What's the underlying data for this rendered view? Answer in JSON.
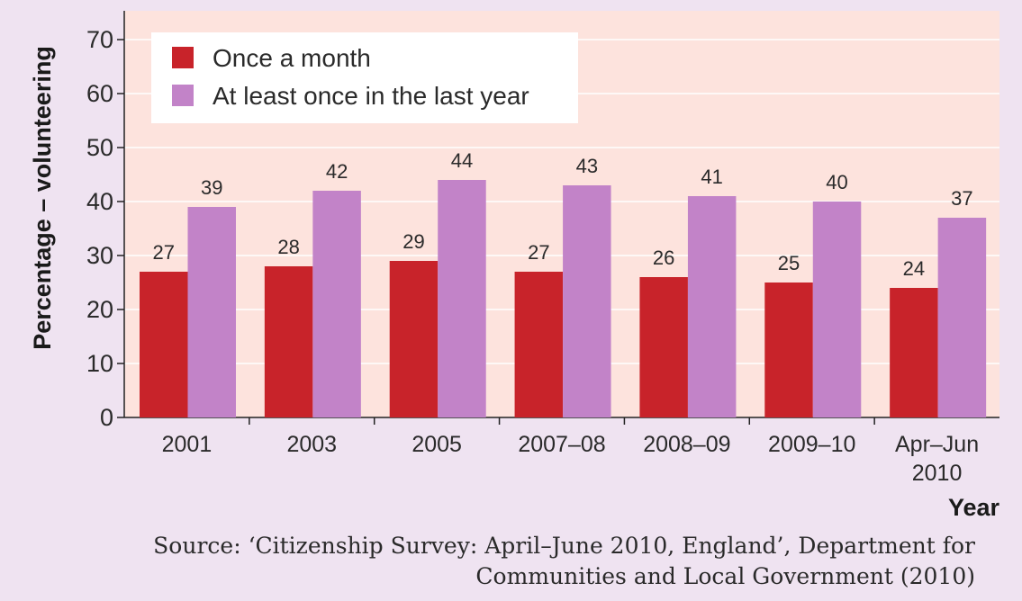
{
  "chart_data": {
    "type": "bar",
    "ylabel": "Percentage – volunteering",
    "xlabel": "Year",
    "ylim": [
      0,
      75
    ],
    "yticks": [
      0,
      10,
      20,
      30,
      40,
      50,
      60,
      70
    ],
    "categories": [
      [
        "2001"
      ],
      [
        "2003"
      ],
      [
        "2005"
      ],
      [
        "2007–08"
      ],
      [
        "2008–09"
      ],
      [
        "2009–10"
      ],
      [
        "Apr–Jun",
        "2010"
      ]
    ],
    "series": [
      {
        "name": "Once a month",
        "color": "#c8232a",
        "values": [
          27,
          28,
          29,
          27,
          26,
          25,
          24
        ]
      },
      {
        "name": "At least once in the last year",
        "color": "#c283c8",
        "values": [
          39,
          42,
          44,
          43,
          41,
          40,
          37
        ]
      }
    ],
    "legend_position": "top-left",
    "grid": true,
    "plot_background": "#fde3dd"
  },
  "source": {
    "line1": "Source: ‘Citizenship Survey: April–June 2010, England’, Department for",
    "line2": "Communities and Local Government (2010)"
  }
}
